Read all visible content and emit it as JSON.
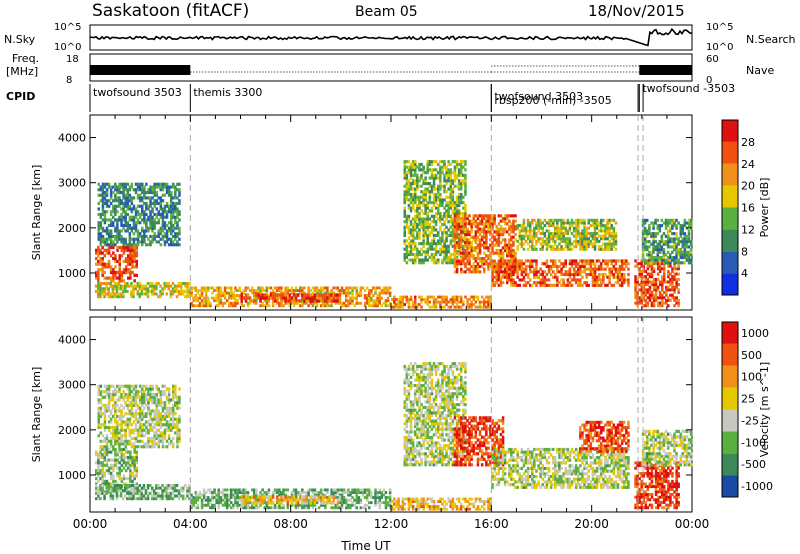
{
  "header": {
    "station": "Saskatoon (fitACF)",
    "beam": "Beam 05",
    "date": "18/Nov/2015"
  },
  "colors": {
    "power": [
      "#1030e0",
      "#2a5ab8",
      "#3a8a5a",
      "#5ab040",
      "#e6c800",
      "#f09018",
      "#f05010",
      "#e01010"
    ],
    "velocity": [
      "#1a4aa8",
      "#3a8a5a",
      "#5ab040",
      "#c8c8c0",
      "#e6c800",
      "#f09018",
      "#f05010",
      "#e01010"
    ]
  },
  "strips": {
    "nsky_label": "N.Sky",
    "nsky_ticks": [
      "10^5",
      "10^0"
    ],
    "nsearch_label": "N.Search",
    "nsearch_ticks": [
      "10^5",
      "10^0"
    ],
    "freq_label_1": "Freq.",
    "freq_label_2": "[MHz]",
    "freq_ticks": [
      "18",
      "8"
    ],
    "nave_label": "Nave",
    "nave_ticks": [
      "60",
      "0"
    ],
    "cpid_label": "CPID",
    "cpid_segments": [
      {
        "label": "twofsound 3503",
        "start_h": 0,
        "end_h": 4
      },
      {
        "label": "themis 3300",
        "start_h": 4,
        "end_h": 16
      },
      {
        "label": "twofsound 3503",
        "start_h": 16,
        "end_h": 21.9
      },
      {
        "label": "rbsp200 (-min) -3505",
        "start_h": 16,
        "end_h": 22
      },
      {
        "label": "twofsound -3503",
        "start_h": 21.9,
        "end_h": 24
      }
    ]
  },
  "chart_data": [
    {
      "type": "heatmap",
      "quantity": "Power",
      "ylabel": "Slant Range [km]",
      "xlabel": "",
      "xlim": [
        0,
        24
      ],
      "ylim": [
        180,
        4500
      ],
      "yticks": [
        "1000",
        "2000",
        "3000",
        "4000"
      ],
      "colorbar_label": "Power [dB]",
      "colorbar_ticks": [
        "4",
        "8",
        "12",
        "16",
        "20",
        "24",
        "28"
      ],
      "colorbar_range": [
        0,
        32
      ],
      "regions": [
        {
          "t": [
            0.2,
            1.9
          ],
          "r": [
            800,
            1600
          ],
          "level": 0.82
        },
        {
          "t": [
            0.2,
            4.0
          ],
          "r": [
            450,
            800
          ],
          "level": 0.55
        },
        {
          "t": [
            0.3,
            3.6
          ],
          "r": [
            1600,
            3000
          ],
          "level": 0.3
        },
        {
          "t": [
            4.0,
            12.0
          ],
          "r": [
            250,
            700
          ],
          "level": 0.65
        },
        {
          "t": [
            6.0,
            10.0
          ],
          "r": [
            350,
            550
          ],
          "level": 0.85
        },
        {
          "t": [
            12.0,
            16.0
          ],
          "r": [
            220,
            500
          ],
          "level": 0.72
        },
        {
          "t": [
            12.5,
            15.0
          ],
          "r": [
            1200,
            3500
          ],
          "level": 0.45
        },
        {
          "t": [
            14.5,
            17.0
          ],
          "r": [
            1000,
            2300
          ],
          "level": 0.75
        },
        {
          "t": [
            16.0,
            21.5
          ],
          "r": [
            700,
            1300
          ],
          "level": 0.78
        },
        {
          "t": [
            17.0,
            21.0
          ],
          "r": [
            1500,
            2200
          ],
          "level": 0.5
        },
        {
          "t": [
            21.7,
            23.5
          ],
          "r": [
            250,
            1300
          ],
          "level": 0.82
        },
        {
          "t": [
            22.0,
            24.0
          ],
          "r": [
            1200,
            2200
          ],
          "level": 0.35
        }
      ]
    },
    {
      "type": "heatmap",
      "quantity": "Velocity",
      "ylabel": "Slant Range [km]",
      "xlabel": "Time UT",
      "xlim": [
        0,
        24
      ],
      "ylim": [
        180,
        4500
      ],
      "xticks": [
        "00:00",
        "04:00",
        "08:00",
        "12:00",
        "16:00",
        "20:00",
        "00:00"
      ],
      "yticks": [
        "1000",
        "2000",
        "3000",
        "4000"
      ],
      "colorbar_label": "Velocity [m s^-1]",
      "colorbar_ticks": [
        "1000",
        "500",
        "100",
        "25",
        "-25",
        "-100",
        "-500",
        "-1000"
      ],
      "regions": [
        {
          "t": [
            0.2,
            1.9
          ],
          "r": [
            600,
            1600
          ],
          "level": 0.38
        },
        {
          "t": [
            0.2,
            4.0
          ],
          "r": [
            450,
            800
          ],
          "level": 0.3
        },
        {
          "t": [
            0.3,
            3.6
          ],
          "r": [
            1600,
            3000
          ],
          "level": 0.42
        },
        {
          "t": [
            4.0,
            12.0
          ],
          "r": [
            250,
            700
          ],
          "level": 0.3
        },
        {
          "t": [
            6.0,
            10.0
          ],
          "r": [
            350,
            550
          ],
          "level": 0.62
        },
        {
          "t": [
            12.0,
            16.0
          ],
          "r": [
            220,
            500
          ],
          "level": 0.62
        },
        {
          "t": [
            12.5,
            15.0
          ],
          "r": [
            1200,
            3500
          ],
          "level": 0.42
        },
        {
          "t": [
            14.5,
            16.5
          ],
          "r": [
            1200,
            2300
          ],
          "level": 0.85
        },
        {
          "t": [
            16.0,
            21.5
          ],
          "r": [
            700,
            1600
          ],
          "level": 0.42
        },
        {
          "t": [
            19.5,
            21.5
          ],
          "r": [
            1500,
            2200
          ],
          "level": 0.82
        },
        {
          "t": [
            21.7,
            23.5
          ],
          "r": [
            250,
            1300
          ],
          "level": 0.88
        },
        {
          "t": [
            22.0,
            24.0
          ],
          "r": [
            1200,
            2000
          ],
          "level": 0.42
        }
      ]
    }
  ]
}
